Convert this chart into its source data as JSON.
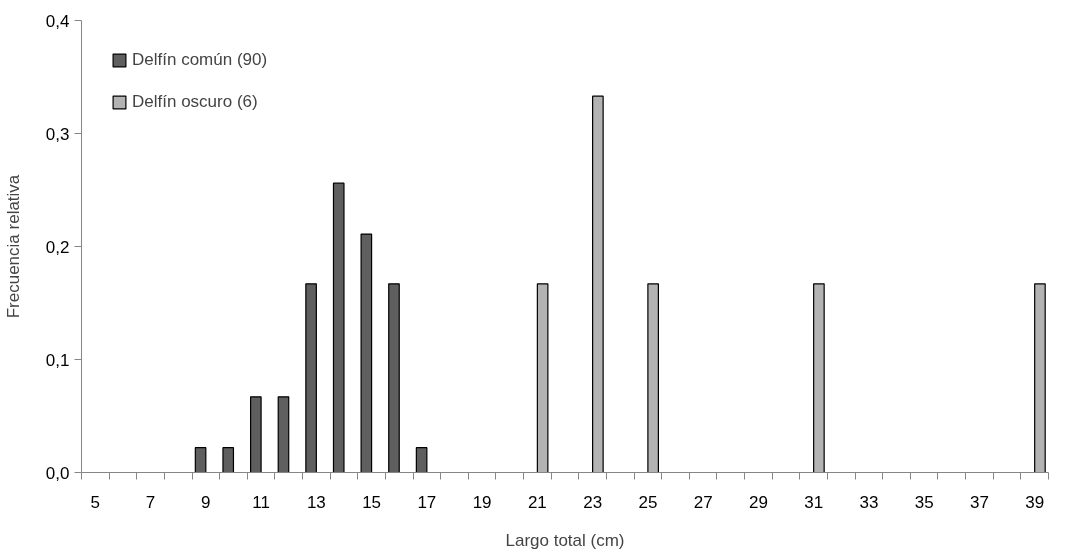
{
  "chart_data": {
    "type": "bar",
    "xlabel": "Largo total (cm)",
    "ylabel": "Frecuencia relativa",
    "categories": [
      "5",
      null,
      "7",
      null,
      "9",
      null,
      "11",
      null,
      "13",
      null,
      "15",
      null,
      "17",
      null,
      "19",
      null,
      "21",
      null,
      "23",
      null,
      "25",
      null,
      "27",
      null,
      "29",
      null,
      "31",
      null,
      "33",
      null,
      "35",
      null,
      "37",
      null,
      "39"
    ],
    "series": [
      {
        "name": "Delfín común (90)",
        "color": "#5f5f5f",
        "values": [
          null,
          null,
          null,
          null,
          0.022,
          0.022,
          0.067,
          0.067,
          0.167,
          0.256,
          0.211,
          0.167,
          0.022,
          null,
          null,
          null,
          null,
          null,
          null,
          null,
          null,
          null,
          null,
          null,
          null,
          null,
          null,
          null,
          null,
          null,
          null,
          null,
          null,
          null,
          null
        ]
      },
      {
        "name": "Delfín oscuro (6)",
        "color": "#b3b3b3",
        "values": [
          null,
          null,
          null,
          null,
          null,
          null,
          null,
          null,
          null,
          null,
          null,
          null,
          null,
          null,
          null,
          null,
          0.167,
          null,
          0.333,
          null,
          0.167,
          null,
          null,
          null,
          null,
          null,
          0.167,
          null,
          null,
          null,
          null,
          null,
          null,
          null,
          0.167
        ]
      }
    ],
    "ylim": [
      0,
      0.4
    ],
    "yticks": [
      {
        "value": 0,
        "label": "0,0"
      },
      {
        "value": 0.1,
        "label": "0,1"
      },
      {
        "value": 0.2,
        "label": "0,2"
      },
      {
        "value": 0.3,
        "label": "0,3"
      },
      {
        "value": 0.4,
        "label": "0,4"
      }
    ],
    "legend": "top left",
    "grid": false
  }
}
